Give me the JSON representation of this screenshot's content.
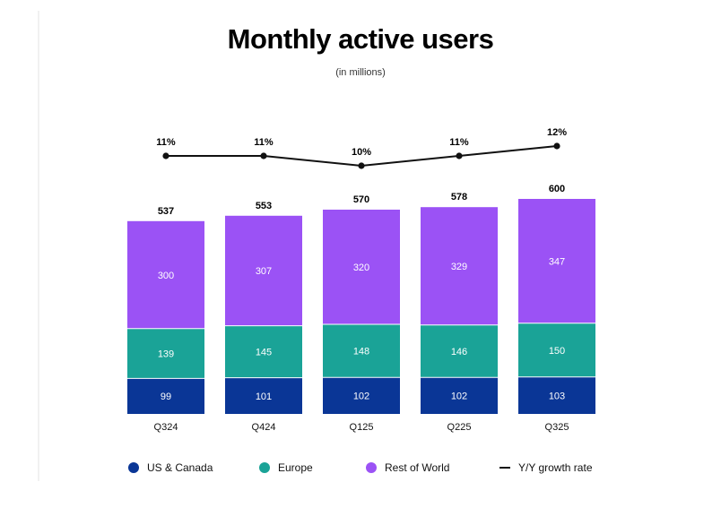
{
  "chart_data": {
    "type": "bar",
    "stacked": true,
    "title": "Monthly active users",
    "subtitle": "(in millions)",
    "categories": [
      "Q324",
      "Q424",
      "Q125",
      "Q225",
      "Q325"
    ],
    "series": [
      {
        "name": "US & Canada",
        "values": [
          99,
          101,
          102,
          102,
          103
        ],
        "color": "#0a3696"
      },
      {
        "name": "Europe",
        "values": [
          139,
          145,
          148,
          146,
          150
        ],
        "color": "#1aa397"
      },
      {
        "name": "Rest of World",
        "values": [
          300,
          307,
          320,
          329,
          347
        ],
        "color": "#9b52f5"
      }
    ],
    "totals": [
      537,
      553,
      570,
      578,
      600
    ],
    "growth": {
      "name": "Y/Y growth rate",
      "values": [
        11,
        11,
        10,
        11,
        12
      ],
      "labels": [
        "11%",
        "11%",
        "10%",
        "11%",
        "12%"
      ],
      "color": "#111111"
    },
    "ylim": [
      0,
      600
    ],
    "grid": false,
    "legend_position": "bottom"
  }
}
